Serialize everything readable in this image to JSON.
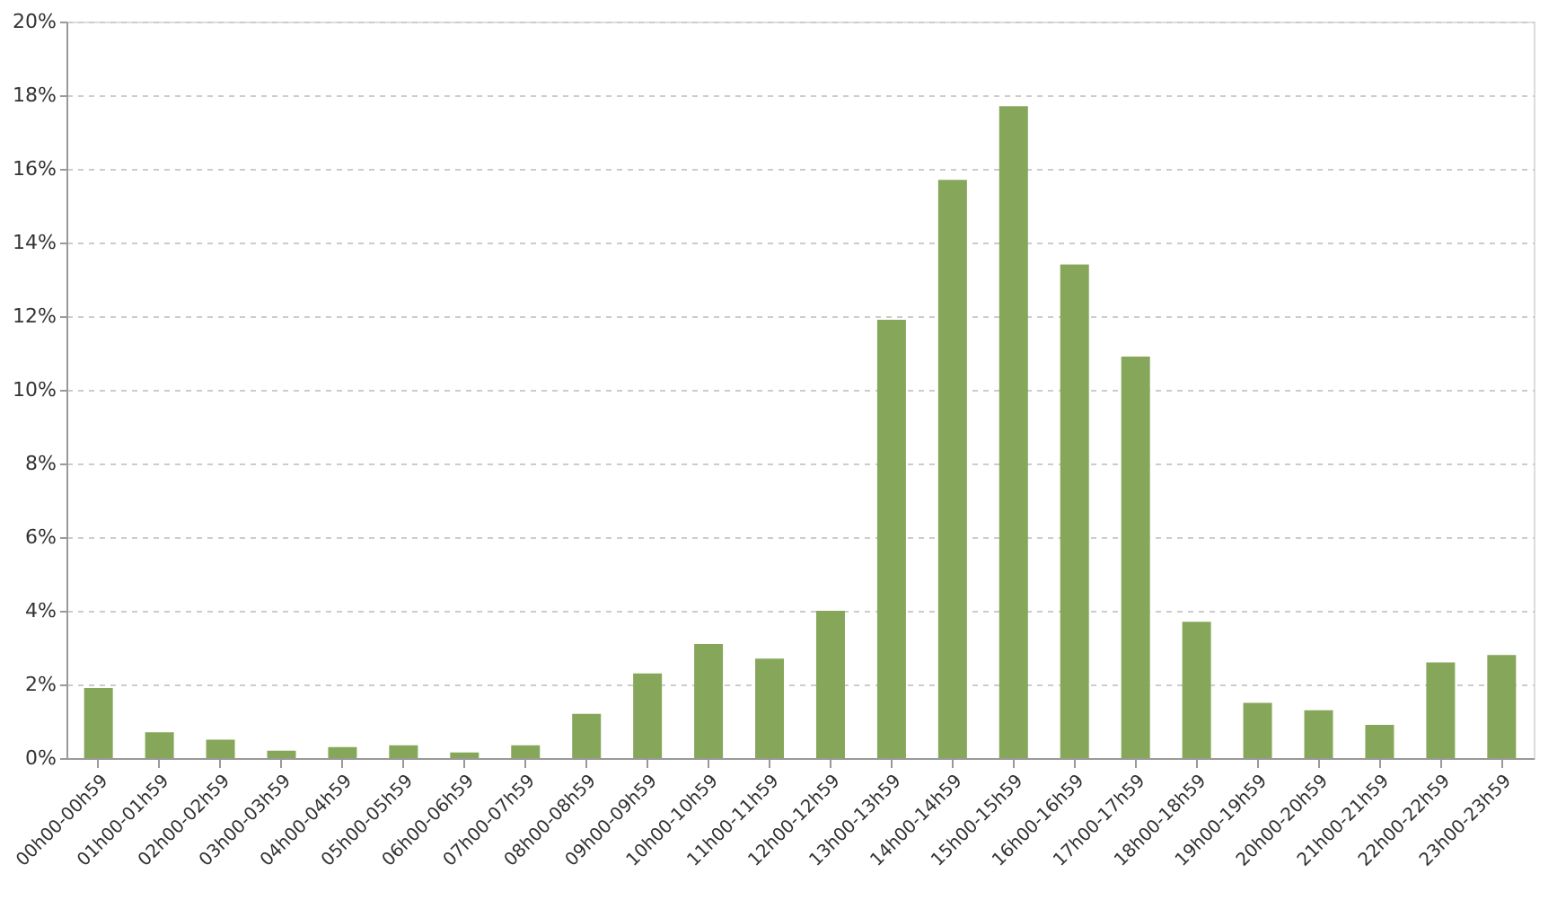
{
  "chart_data": {
    "type": "bar",
    "categories": [
      "00h00-00h59",
      "01h00-01h59",
      "02h00-02h59",
      "03h00-03h59",
      "04h00-04h59",
      "05h00-05h59",
      "06h00-06h59",
      "07h00-07h59",
      "08h00-08h59",
      "09h00-09h59",
      "10h00-10h59",
      "11h00-11h59",
      "12h00-12h59",
      "13h00-13h59",
      "14h00-14h59",
      "15h00-15h59",
      "16h00-16h59",
      "17h00-17h59",
      "18h00-18h59",
      "19h00-19h59",
      "20h00-20h59",
      "21h00-21h59",
      "22h00-22h59",
      "23h00-23h59"
    ],
    "series": [
      {
        "color": "#86a75a",
        "values": [
          1.9,
          0.7,
          0.5,
          0.2,
          0.3,
          0.35,
          0.15,
          0.35,
          1.2,
          2.3,
          3.1,
          2.7,
          4.0,
          11.9,
          15.7,
          17.7,
          13.4,
          10.9,
          3.7,
          1.5,
          1.3,
          0.9,
          2.6,
          2.8
        ]
      }
    ],
    "ylim": [
      0,
      20
    ],
    "yticks": [
      {
        "value": 0,
        "label": "0%"
      },
      {
        "value": 2,
        "label": "2%"
      },
      {
        "value": 4,
        "label": "4%"
      },
      {
        "value": 6,
        "label": "6%"
      },
      {
        "value": 8,
        "label": "8%"
      },
      {
        "value": 10,
        "label": "10%"
      },
      {
        "value": 12,
        "label": "12%"
      },
      {
        "value": 14,
        "label": "14%"
      },
      {
        "value": 16,
        "label": "16%"
      },
      {
        "value": 18,
        "label": "18%"
      },
      {
        "value": 20,
        "label": "20%"
      }
    ],
    "grid": "y"
  }
}
